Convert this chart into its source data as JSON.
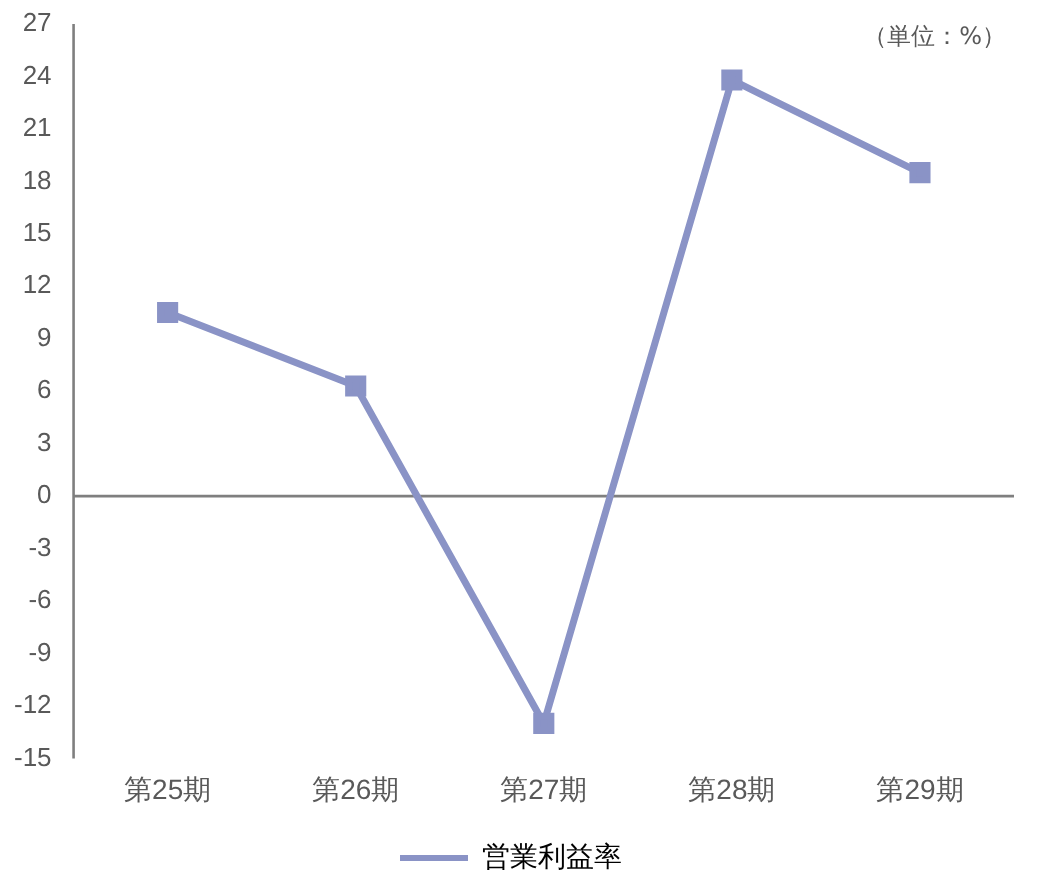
{
  "chart_data": {
    "type": "line",
    "categories": [
      "第25期",
      "第26期",
      "第27期",
      "第28期",
      "第29期"
    ],
    "series": [
      {
        "name": "営業利益率",
        "color": "#8a93c6",
        "values": [
          10.5,
          6.3,
          -13.0,
          23.8,
          18.5
        ]
      }
    ],
    "ylim": [
      -15,
      27
    ],
    "yticks": [
      -15,
      -12,
      -9,
      -6,
      -3,
      0,
      3,
      6,
      9,
      12,
      15,
      18,
      21,
      24,
      27
    ],
    "annotations": [
      "（単位：%）"
    ],
    "ref_lines": [
      {
        "axis": "y",
        "value": 0,
        "color": "#7f7f7f"
      }
    ],
    "legend": "bottom",
    "marker": "square",
    "line_style": "solid",
    "grid": false
  }
}
